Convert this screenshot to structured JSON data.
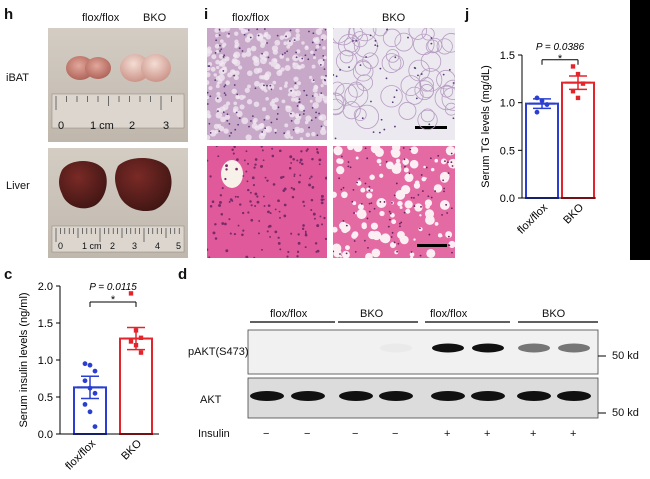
{
  "panel_h": {
    "label": "h",
    "col_labels": [
      "flox/flox",
      "BKO"
    ],
    "row_labels": [
      "iBAT",
      "Liver"
    ],
    "ruler1_ticks": [
      "0",
      "1 cm",
      "2",
      "3"
    ],
    "ruler2_ticks": [
      "0",
      "1 cm",
      "2",
      "3",
      "4",
      "5"
    ]
  },
  "panel_i": {
    "label": "i",
    "col_labels": [
      "flox/flox",
      "BKO"
    ]
  },
  "panel_c": {
    "label": "c",
    "p_text": "P = 0.0115",
    "star": "*"
  },
  "panel_d": {
    "label": "d",
    "group_labels": [
      "flox/flox",
      "BKO",
      "flox/flox",
      "BKO"
    ],
    "row_labels": [
      "pAKT(S473)",
      "AKT"
    ],
    "marker_labels": [
      "50 kd",
      "50 kd"
    ],
    "insulin_label": "Insulin",
    "insulin_signs": [
      "−",
      "−",
      "−",
      "−",
      "+",
      "+",
      "+",
      "+"
    ],
    "pakt_intensity": [
      0.0,
      0.0,
      0.0,
      0.03,
      1.0,
      1.0,
      0.55,
      0.55
    ],
    "akt_intensity": [
      1,
      1,
      1,
      1,
      1,
      1,
      1,
      1
    ]
  },
  "panel_j": {
    "label": "j",
    "p_text": "P = 0.0386",
    "star": "*"
  },
  "chart_data": [
    {
      "type": "bar",
      "panel": "c",
      "categories": [
        "flox/flox",
        "BKO"
      ],
      "values": [
        0.63,
        1.29
      ],
      "errors": [
        0.15,
        0.15
      ],
      "colors": [
        "#2a3fd1",
        "#e4242b"
      ],
      "points": [
        [
          0.95,
          0.93,
          0.85,
          0.72,
          0.62,
          0.55,
          0.4,
          0.3,
          0.1
        ],
        [
          1.9,
          1.4,
          1.3,
          1.25,
          1.2,
          1.1
        ]
      ],
      "ylabel": "Serum insulin levels (ng/ml)",
      "ylim": [
        0,
        2.0
      ],
      "yticks": [
        "0.0",
        "0.5",
        "1.0",
        "1.5",
        "2.0"
      ]
    },
    {
      "type": "bar",
      "panel": "j",
      "categories": [
        "flox/flox",
        "BKO"
      ],
      "values": [
        0.99,
        1.21
      ],
      "errors": [
        0.05,
        0.07
      ],
      "colors": [
        "#2a3fd1",
        "#e4242b"
      ],
      "points": [
        [
          1.05,
          1.02,
          0.98,
          0.9
        ],
        [
          1.38,
          1.3,
          1.2,
          1.12,
          1.05
        ]
      ],
      "ylabel": "Serum TG levels (mg/dL)",
      "ylim": [
        0,
        1.5
      ],
      "yticks": [
        "0.0",
        "0.5",
        "1.0",
        "1.5"
      ]
    }
  ]
}
